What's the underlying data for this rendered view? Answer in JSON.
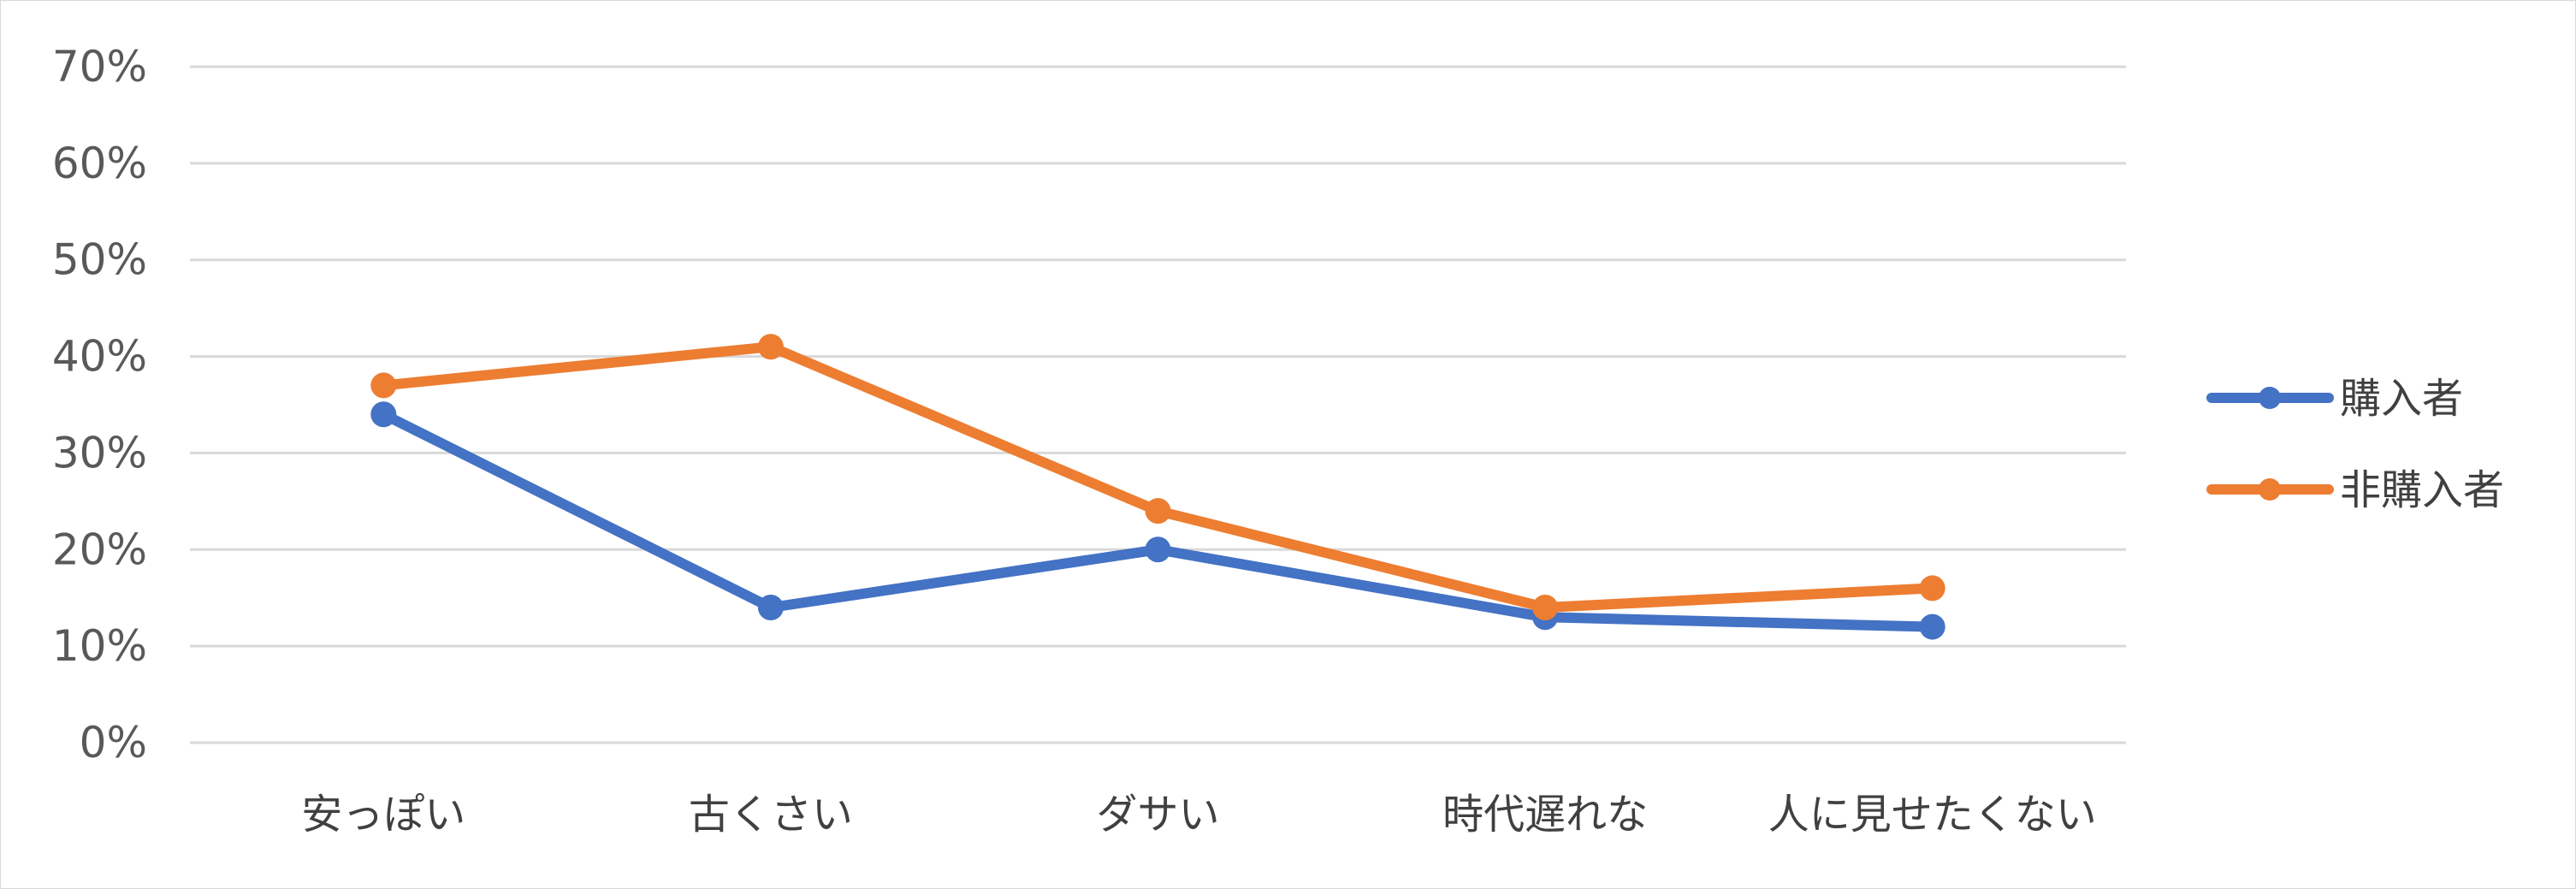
{
  "chart_data": {
    "type": "line",
    "categories": [
      "安っぽい",
      "古くさい",
      "ダサい",
      "時代遅れな",
      "人に見せたくない"
    ],
    "series": [
      {
        "name": "購入者",
        "color": "#4472C4",
        "values": [
          34,
          14,
          20,
          13,
          12
        ]
      },
      {
        "name": "非購入者",
        "color": "#ED7D31",
        "values": [
          37,
          41,
          24,
          14,
          16
        ]
      }
    ],
    "y_ticks": [
      "0%",
      "10%",
      "20%",
      "30%",
      "40%",
      "50%",
      "60%",
      "70%"
    ],
    "ylim": [
      0,
      70
    ],
    "y_unit": "%",
    "grid": true,
    "legend_position": "right"
  }
}
